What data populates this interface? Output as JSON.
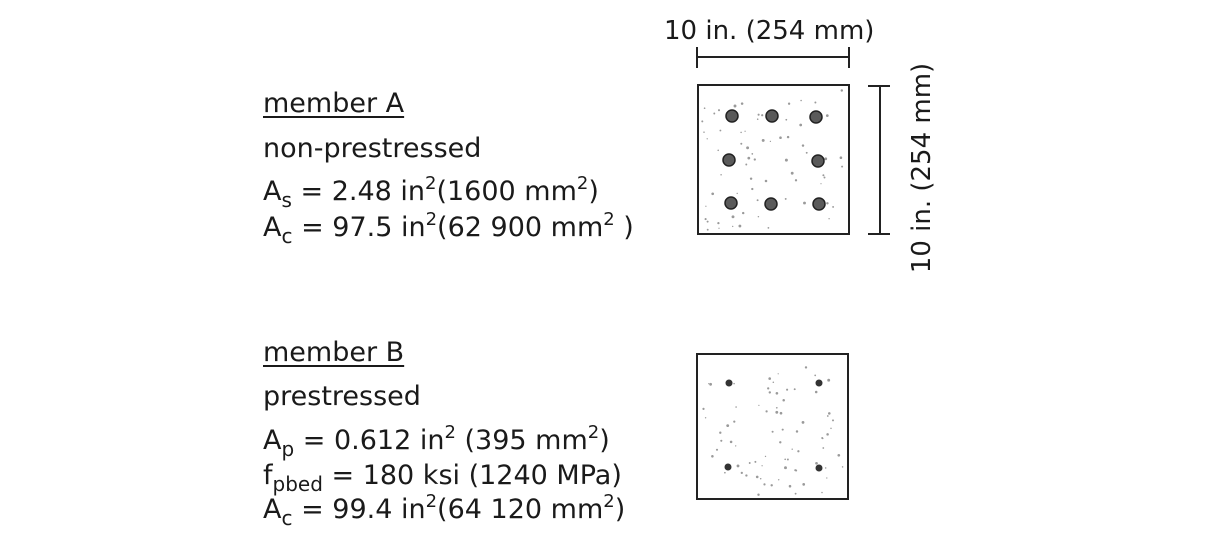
{
  "member_a": {
    "title": "member A",
    "type": "non-prestressed",
    "as_symbol": "A",
    "as_sub": "s",
    "as_text": " = 2.48 in",
    "as_exp": "2",
    "as_metric": "(1600 mm",
    "as_metric_exp": "2",
    "as_close": ")",
    "ac_symbol": "A",
    "ac_sub": "c",
    "ac_text": " = 97.5 in",
    "ac_exp": "2",
    "ac_metric": "(62 900 mm",
    "ac_metric_exp": "2",
    "ac_close": " )"
  },
  "member_b": {
    "title": "member B",
    "type": "prestressed",
    "ap_symbol": "A",
    "ap_sub": "p",
    "ap_text": " = 0.612 in",
    "ap_exp": "2",
    "ap_metric": " (395 mm",
    "ap_metric_exp": "2",
    "ap_close": ")",
    "fp_symbol": "f",
    "fp_sub": "pbed",
    "fp_text": " = 180 ksi (1240 MPa)",
    "ac_symbol": "A",
    "ac_sub": "c",
    "ac_text": " =  99.4 in",
    "ac_exp": "2",
    "ac_metric": "(64 120 mm",
    "ac_metric_exp": "2",
    "ac_close": ")"
  },
  "dimensions": {
    "width_label": "10 in. (254 mm)",
    "height_label": "10 in. (254 mm)"
  },
  "colors": {
    "line": "#222222",
    "bar": "#555555",
    "stipple": "#9a9a9a"
  }
}
